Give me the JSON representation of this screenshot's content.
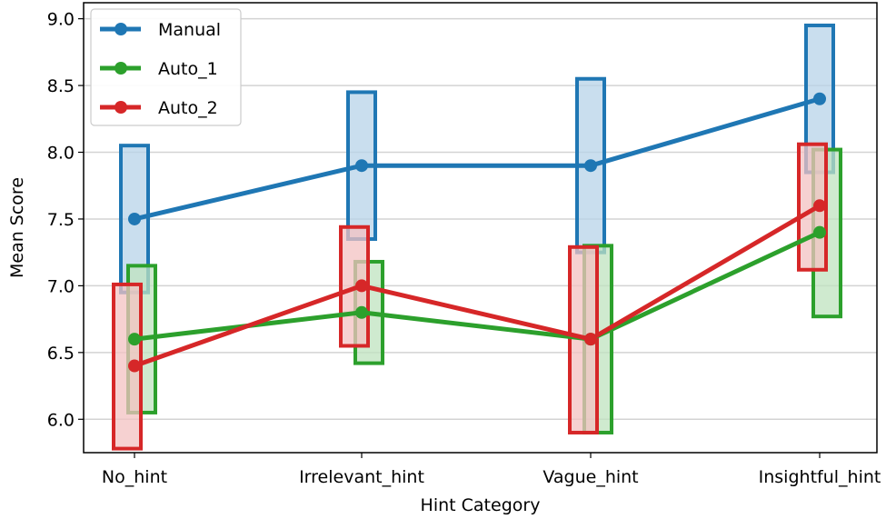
{
  "chart_data": {
    "type": "line",
    "title": "",
    "xlabel": "Hint Category",
    "ylabel": "Mean Score",
    "categories": [
      "No_hint",
      "Irrelevant_hint",
      "Vague_hint",
      "Insightful_hint"
    ],
    "ylim": [
      5.75,
      9.12
    ],
    "yticks": [
      "6.0",
      "6.5",
      "7.0",
      "7.5",
      "8.0",
      "8.5",
      "9.0"
    ],
    "grid": "horizontal",
    "legend_position": "top-left",
    "series": [
      {
        "name": "Manual",
        "color": "#1f77b4",
        "fill": "#b7d3e8",
        "values": [
          7.5,
          7.9,
          7.9,
          8.4
        ],
        "range_low": [
          6.95,
          7.35,
          7.25,
          7.85
        ],
        "range_high": [
          8.05,
          8.45,
          8.55,
          8.95
        ]
      },
      {
        "name": "Auto_1",
        "color": "#2ca02c",
        "fill": "#bfe3bf",
        "values": [
          6.6,
          6.8,
          6.6,
          7.4
        ],
        "range_low": [
          6.05,
          6.42,
          5.9,
          6.77
        ],
        "range_high": [
          7.15,
          7.18,
          7.3,
          8.02
        ]
      },
      {
        "name": "Auto_2",
        "color": "#d62728",
        "fill": "#f3c1c1",
        "values": [
          6.4,
          7.0,
          6.6,
          7.6
        ],
        "range_low": [
          5.78,
          6.55,
          5.9,
          7.12
        ],
        "range_high": [
          7.01,
          7.44,
          7.29,
          8.06
        ]
      }
    ]
  }
}
